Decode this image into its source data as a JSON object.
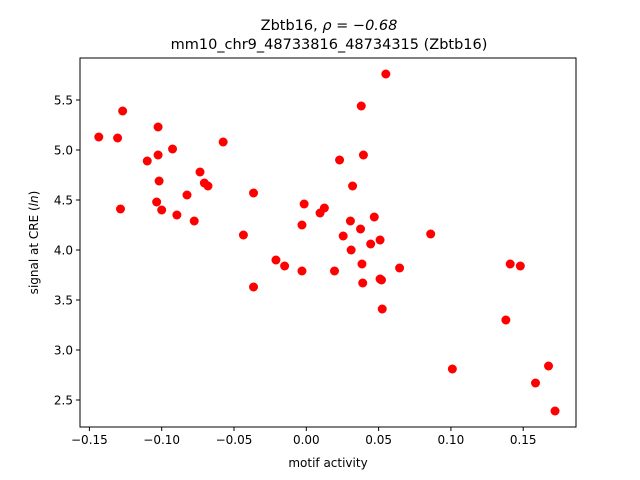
{
  "chart_data": {
    "type": "scatter",
    "title_line1_prefix": "Zbtb16, ",
    "title_line1_rho": "ρ = −0.68",
    "title_line2": "mm10_chr9_48733816_48734315 (Zbtb16)",
    "xlabel": "motif activity",
    "ylabel_prefix": "signal at CRE (",
    "ylabel_italic": "ln",
    "ylabel_suffix": ")",
    "xlim": [
      -0.1565,
      0.1865
    ],
    "ylim": [
      2.23,
      5.92
    ],
    "xticks": [
      -0.15,
      -0.1,
      -0.05,
      0.0,
      0.05,
      0.1,
      0.15
    ],
    "xtick_labels": [
      "−0.15",
      "−0.10",
      "−0.05",
      "0.00",
      "0.05",
      "0.10",
      "0.15"
    ],
    "yticks": [
      2.5,
      3.0,
      3.5,
      4.0,
      4.5,
      5.0,
      5.5
    ],
    "ytick_labels": [
      "2.5",
      "3.0",
      "3.5",
      "4.0",
      "4.5",
      "5.0",
      "5.5"
    ],
    "grid": false,
    "marker_color": "#ff0000",
    "points": [
      {
        "x": -0.1435,
        "y": 5.13
      },
      {
        "x": -0.1305,
        "y": 5.12
      },
      {
        "x": -0.127,
        "y": 5.39
      },
      {
        "x": -0.1285,
        "y": 4.41
      },
      {
        "x": -0.11,
        "y": 4.89
      },
      {
        "x": -0.1025,
        "y": 5.23
      },
      {
        "x": -0.1025,
        "y": 4.95
      },
      {
        "x": -0.1018,
        "y": 4.69
      },
      {
        "x": -0.1035,
        "y": 4.48
      },
      {
        "x": -0.1,
        "y": 4.4
      },
      {
        "x": -0.0925,
        "y": 5.01
      },
      {
        "x": -0.0895,
        "y": 4.35
      },
      {
        "x": -0.0825,
        "y": 4.55
      },
      {
        "x": -0.0775,
        "y": 4.29
      },
      {
        "x": -0.0735,
        "y": 4.78
      },
      {
        "x": -0.0705,
        "y": 4.67
      },
      {
        "x": -0.068,
        "y": 4.64
      },
      {
        "x": -0.0575,
        "y": 5.08
      },
      {
        "x": -0.0435,
        "y": 4.15
      },
      {
        "x": -0.0365,
        "y": 4.57
      },
      {
        "x": -0.0365,
        "y": 3.63
      },
      {
        "x": -0.021,
        "y": 3.9
      },
      {
        "x": -0.015,
        "y": 3.84
      },
      {
        "x": -0.003,
        "y": 3.79
      },
      {
        "x": -0.0015,
        "y": 4.46
      },
      {
        "x": -0.003,
        "y": 4.25
      },
      {
        "x": 0.0095,
        "y": 4.37
      },
      {
        "x": 0.0125,
        "y": 4.42
      },
      {
        "x": 0.0195,
        "y": 3.79
      },
      {
        "x": 0.023,
        "y": 4.9
      },
      {
        "x": 0.0255,
        "y": 4.14
      },
      {
        "x": 0.0305,
        "y": 4.29
      },
      {
        "x": 0.031,
        "y": 4.0
      },
      {
        "x": 0.032,
        "y": 4.64
      },
      {
        "x": 0.0375,
        "y": 4.21
      },
      {
        "x": 0.038,
        "y": 5.44
      },
      {
        "x": 0.0385,
        "y": 3.86
      },
      {
        "x": 0.039,
        "y": 3.67
      },
      {
        "x": 0.0395,
        "y": 4.95
      },
      {
        "x": 0.0445,
        "y": 4.06
      },
      {
        "x": 0.047,
        "y": 4.33
      },
      {
        "x": 0.051,
        "y": 4.1
      },
      {
        "x": 0.051,
        "y": 3.71
      },
      {
        "x": 0.052,
        "y": 3.7
      },
      {
        "x": 0.0525,
        "y": 3.41
      },
      {
        "x": 0.055,
        "y": 5.76
      },
      {
        "x": 0.0645,
        "y": 3.82
      },
      {
        "x": 0.086,
        "y": 4.16
      },
      {
        "x": 0.101,
        "y": 2.81
      },
      {
        "x": 0.138,
        "y": 3.3
      },
      {
        "x": 0.141,
        "y": 3.86
      },
      {
        "x": 0.148,
        "y": 3.84
      },
      {
        "x": 0.1585,
        "y": 2.67
      },
      {
        "x": 0.1675,
        "y": 2.84
      },
      {
        "x": 0.172,
        "y": 2.39
      }
    ]
  }
}
